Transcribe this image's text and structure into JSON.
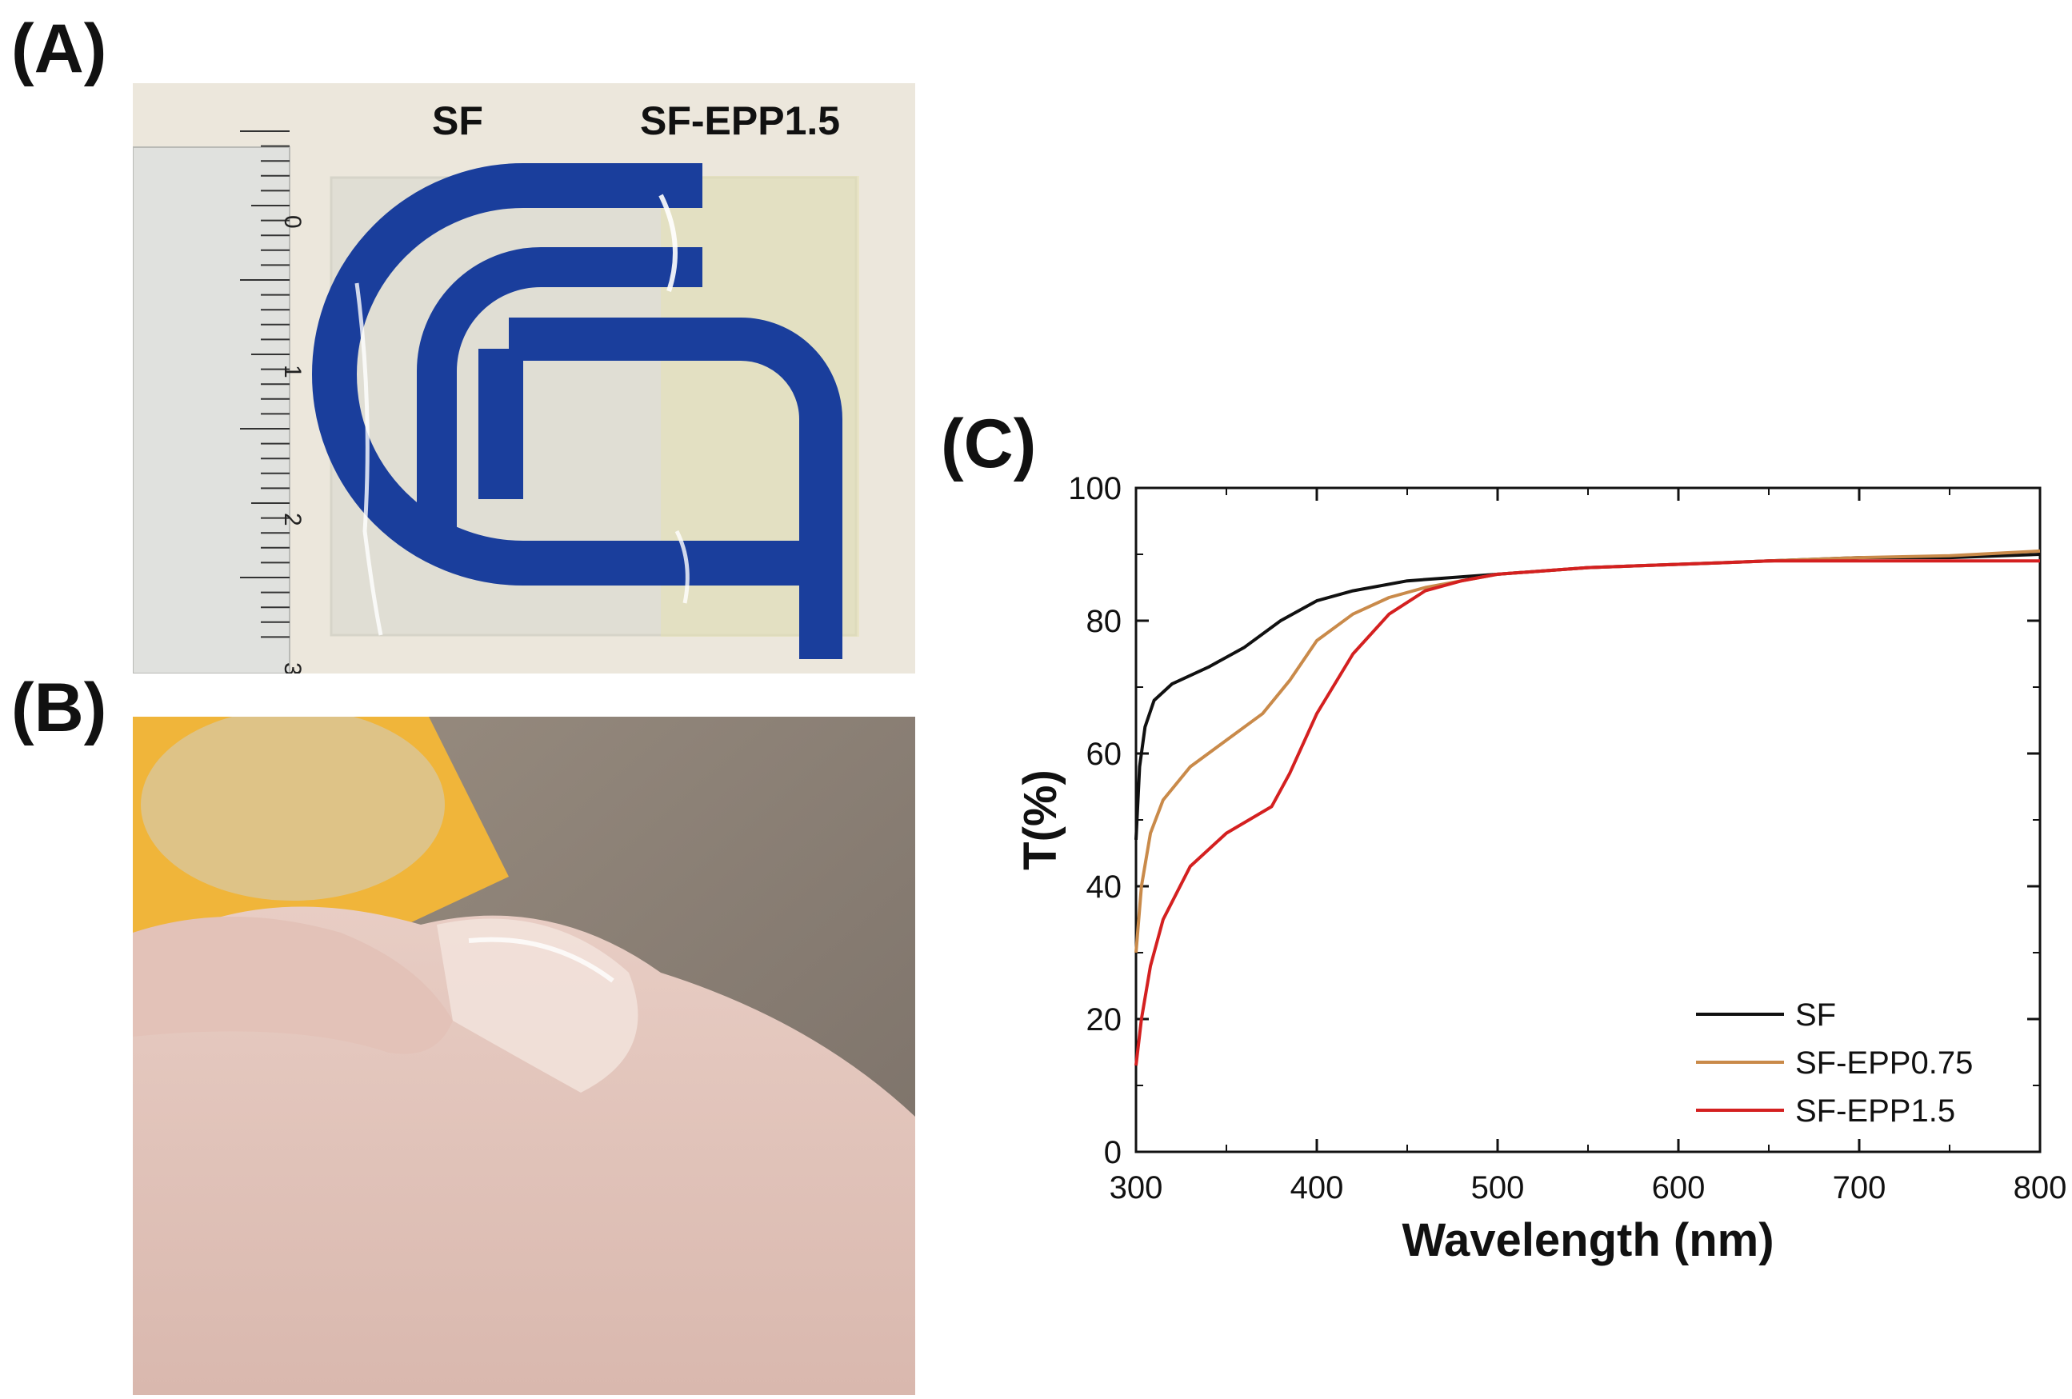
{
  "panels": {
    "a": {
      "letter": "(A)",
      "label_left": "SF",
      "label_right": "SF-EPP1.5",
      "ruler_ticks": [
        "0",
        "1",
        "2",
        "3"
      ]
    },
    "b": {
      "letter": "(B)"
    },
    "c": {
      "letter": "(C)"
    }
  },
  "colors": {
    "logo_blue": "#1a3e9c",
    "paper": "#ece7dc",
    "SF": "#111111",
    "SF-EPP0.75": "#c98a4a",
    "SF-EPP1.5": "#d42020"
  },
  "chart_data": {
    "type": "line",
    "title": "",
    "xlabel": "Wavelength (nm)",
    "ylabel": "T(%)",
    "xlim": [
      300,
      800
    ],
    "ylim": [
      0,
      100
    ],
    "xticks": [
      300,
      400,
      500,
      600,
      700,
      800
    ],
    "yticks": [
      0,
      20,
      40,
      60,
      80,
      100
    ],
    "grid": false,
    "legend_position": "bottom-right",
    "series": [
      {
        "name": "SF",
        "color": "#111111",
        "points": [
          [
            300,
            47
          ],
          [
            302,
            58
          ],
          [
            305,
            64
          ],
          [
            310,
            68
          ],
          [
            320,
            70.5
          ],
          [
            340,
            73
          ],
          [
            360,
            76
          ],
          [
            380,
            80
          ],
          [
            400,
            83
          ],
          [
            420,
            84.5
          ],
          [
            450,
            86
          ],
          [
            500,
            87
          ],
          [
            550,
            88
          ],
          [
            600,
            88.5
          ],
          [
            650,
            89
          ],
          [
            700,
            89.5
          ],
          [
            750,
            89.5
          ],
          [
            800,
            90
          ]
        ]
      },
      {
        "name": "SF-EPP0.75",
        "color": "#c98a4a",
        "points": [
          [
            300,
            30
          ],
          [
            303,
            40
          ],
          [
            308,
            48
          ],
          [
            315,
            53
          ],
          [
            330,
            58
          ],
          [
            350,
            62
          ],
          [
            370,
            66
          ],
          [
            385,
            71
          ],
          [
            400,
            77
          ],
          [
            420,
            81
          ],
          [
            440,
            83.5
          ],
          [
            460,
            85
          ],
          [
            500,
            87
          ],
          [
            550,
            88
          ],
          [
            600,
            88.5
          ],
          [
            650,
            89
          ],
          [
            700,
            89.5
          ],
          [
            750,
            89.8
          ],
          [
            800,
            90.5
          ]
        ]
      },
      {
        "name": "SF-EPP1.5",
        "color": "#d42020",
        "points": [
          [
            300,
            13
          ],
          [
            303,
            20
          ],
          [
            308,
            28
          ],
          [
            315,
            35
          ],
          [
            330,
            43
          ],
          [
            350,
            48
          ],
          [
            375,
            52
          ],
          [
            385,
            57
          ],
          [
            400,
            66
          ],
          [
            420,
            75
          ],
          [
            440,
            81
          ],
          [
            460,
            84.5
          ],
          [
            480,
            86
          ],
          [
            500,
            87
          ],
          [
            550,
            88
          ],
          [
            600,
            88.5
          ],
          [
            650,
            89
          ],
          [
            700,
            89
          ],
          [
            750,
            89
          ],
          [
            800,
            89
          ]
        ]
      }
    ]
  }
}
